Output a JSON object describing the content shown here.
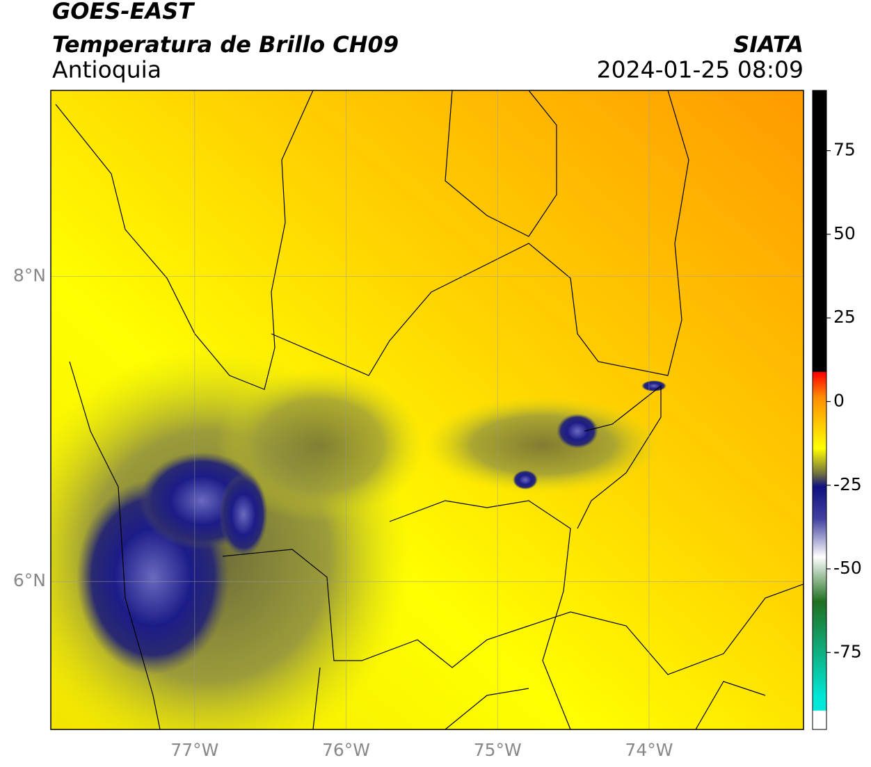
{
  "title": "GOES-EAST",
  "subtitle": "Temperatura de Brillo CH09",
  "region": "Antioquia",
  "source": "SIATA",
  "timestamp": "2024-01-25 08:09",
  "map": {
    "xlim": [
      -77.95,
      -72.98
    ],
    "ylim": [
      5.03,
      9.22
    ],
    "xticks": [
      {
        "value": -77,
        "label": "77°W"
      },
      {
        "value": -76,
        "label": "76°W"
      },
      {
        "value": -75,
        "label": "75°W"
      },
      {
        "value": -74,
        "label": "74°W"
      }
    ],
    "yticks": [
      {
        "value": 8,
        "label": "8°N"
      },
      {
        "value": 6,
        "label": "6°N"
      }
    ],
    "grid": true
  },
  "colorbar": {
    "lim": [
      -98,
      93
    ],
    "ticks": [
      75,
      50,
      25,
      0,
      -25,
      -50,
      -75
    ]
  }
}
